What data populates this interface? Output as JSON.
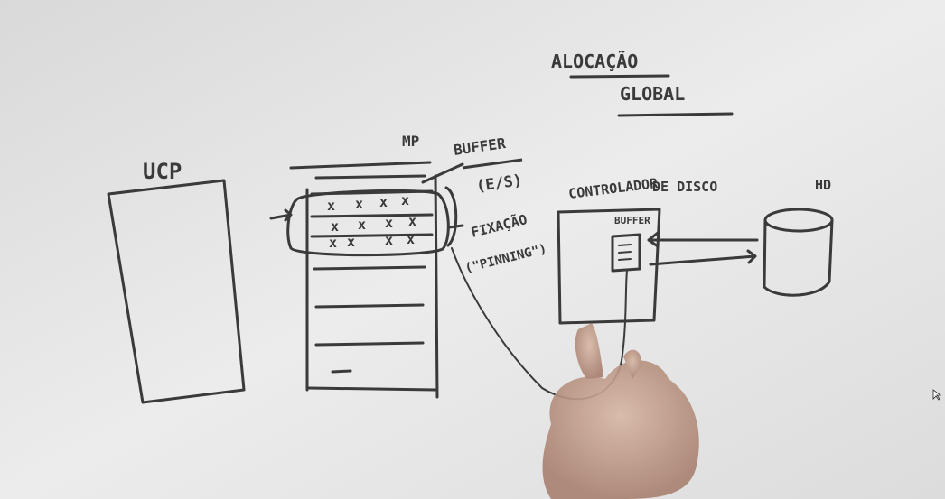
{
  "colors": {
    "board": "#e6e6e6",
    "ink": "#3a3a3a",
    "hand": "#c9a48e"
  },
  "labels": {
    "title_line1": "ALOCAÇÃO",
    "title_line2": "GLOBAL",
    "ucp": "UCP",
    "mp": "MP",
    "buffer_mp": "BUFFER",
    "es": "(E/S)",
    "fixacao": "FIXAÇÃO",
    "pinning": "(\"PINNING\")",
    "controlador": "CONTROLADOR",
    "de_disco": "DE DISCO",
    "buffer_ctrl": "BUFFER",
    "hd": "HD"
  },
  "buffer_marks": [
    [
      "x",
      "x",
      "x",
      "x"
    ],
    [
      "x",
      "x",
      "x",
      "x"
    ],
    [
      "x",
      "x",
      "x",
      "x"
    ]
  ]
}
